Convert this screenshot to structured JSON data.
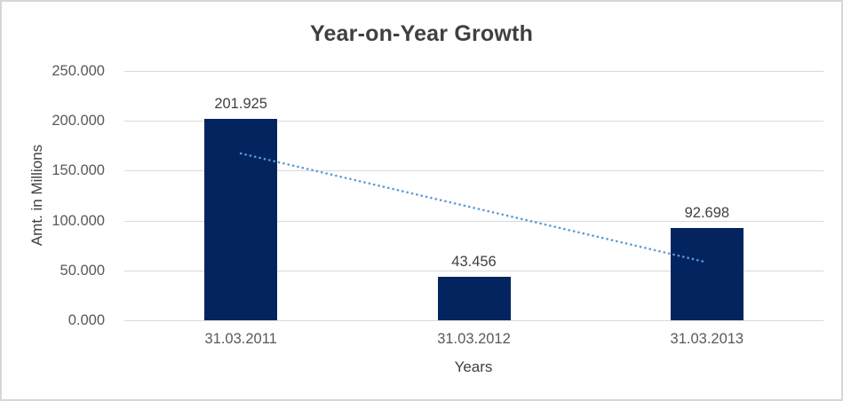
{
  "chart": {
    "title": "Year-on-Year Growth",
    "y_axis_title": "Amt. in Millions",
    "x_axis_title": "Years"
  },
  "chart_data": {
    "type": "bar",
    "title": "Year-on-Year Growth",
    "xlabel": "Years",
    "ylabel": "Amt. in Millions",
    "categories": [
      "31.03.2011",
      "31.03.2012",
      "31.03.2013"
    ],
    "values": [
      201.925,
      43.456,
      92.698
    ],
    "data_labels": [
      "201.925",
      "43.456",
      "92.698"
    ],
    "y_ticks": [
      {
        "value": 250,
        "label": "250.000"
      },
      {
        "value": 200,
        "label": "200.000"
      },
      {
        "value": 150,
        "label": "150.000"
      },
      {
        "value": 100,
        "label": "100.000"
      },
      {
        "value": 50,
        "label": "50.000"
      },
      {
        "value": 0,
        "label": "0.000"
      }
    ],
    "ylim": [
      0,
      250
    ],
    "grid": "horizontal",
    "legend": "none",
    "bar_color": "#04245f",
    "trendline": {
      "type": "linear",
      "style": "dotted",
      "color": "#5b9bd5",
      "start_value": 167.3,
      "end_value": 58.1
    },
    "colors": {
      "gridline": "#d9d9d9",
      "tick_text": "#595959",
      "title_text": "#404040",
      "border": "#d6d6d6"
    }
  }
}
